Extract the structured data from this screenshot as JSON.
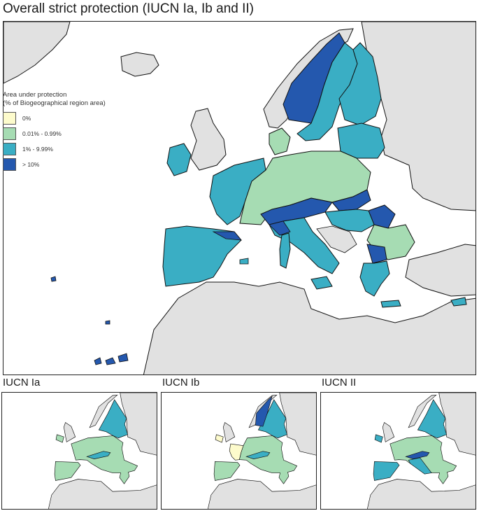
{
  "title": "Overall strict protection (IUCN Ia, Ib and II)",
  "legend": {
    "title_line1": "Area under protection",
    "title_line2": "(% of Biogeographical region area)",
    "classes": [
      {
        "label": "0%",
        "color": "#fdfbcc"
      },
      {
        "label": "0.01% - 0.99%",
        "color": "#a6dcb3"
      },
      {
        "label": "1% - 9.99%",
        "color": "#3aaec4"
      },
      {
        "label": "> 10%",
        "color": "#2458ae"
      }
    ]
  },
  "colors": {
    "sea": "#ffffff",
    "non_eu_land": "#e1e1e1",
    "border": "#111111"
  },
  "panels": [
    {
      "label": "IUCN Ia"
    },
    {
      "label": "IUCN Ib"
    },
    {
      "label": "IUCN II"
    }
  ]
}
